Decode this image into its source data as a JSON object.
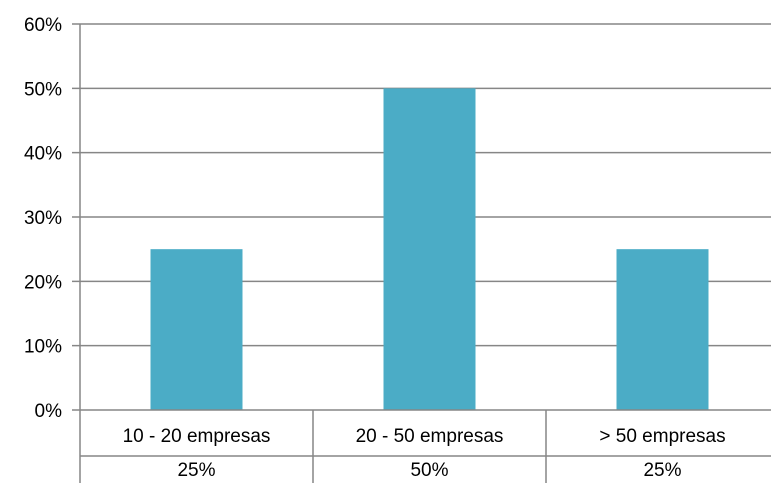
{
  "chart_data": {
    "type": "bar",
    "categories": [
      "10 - 20 empresas",
      "20 - 50 empresas",
      "> 50 empresas"
    ],
    "values": [
      25,
      50,
      25
    ],
    "data_table": [
      "25%",
      "50%",
      "25%"
    ],
    "y_ticks": [
      "0%",
      "10%",
      "20%",
      "30%",
      "40%",
      "50%",
      "60%"
    ],
    "ylim": [
      0,
      60
    ],
    "grid": true,
    "legend": "none",
    "title": "",
    "xlabel": "",
    "ylabel": ""
  },
  "colors": {
    "bar": "#4bacc6",
    "grid": "#868686",
    "axis": "#868686",
    "text": "#000000"
  }
}
